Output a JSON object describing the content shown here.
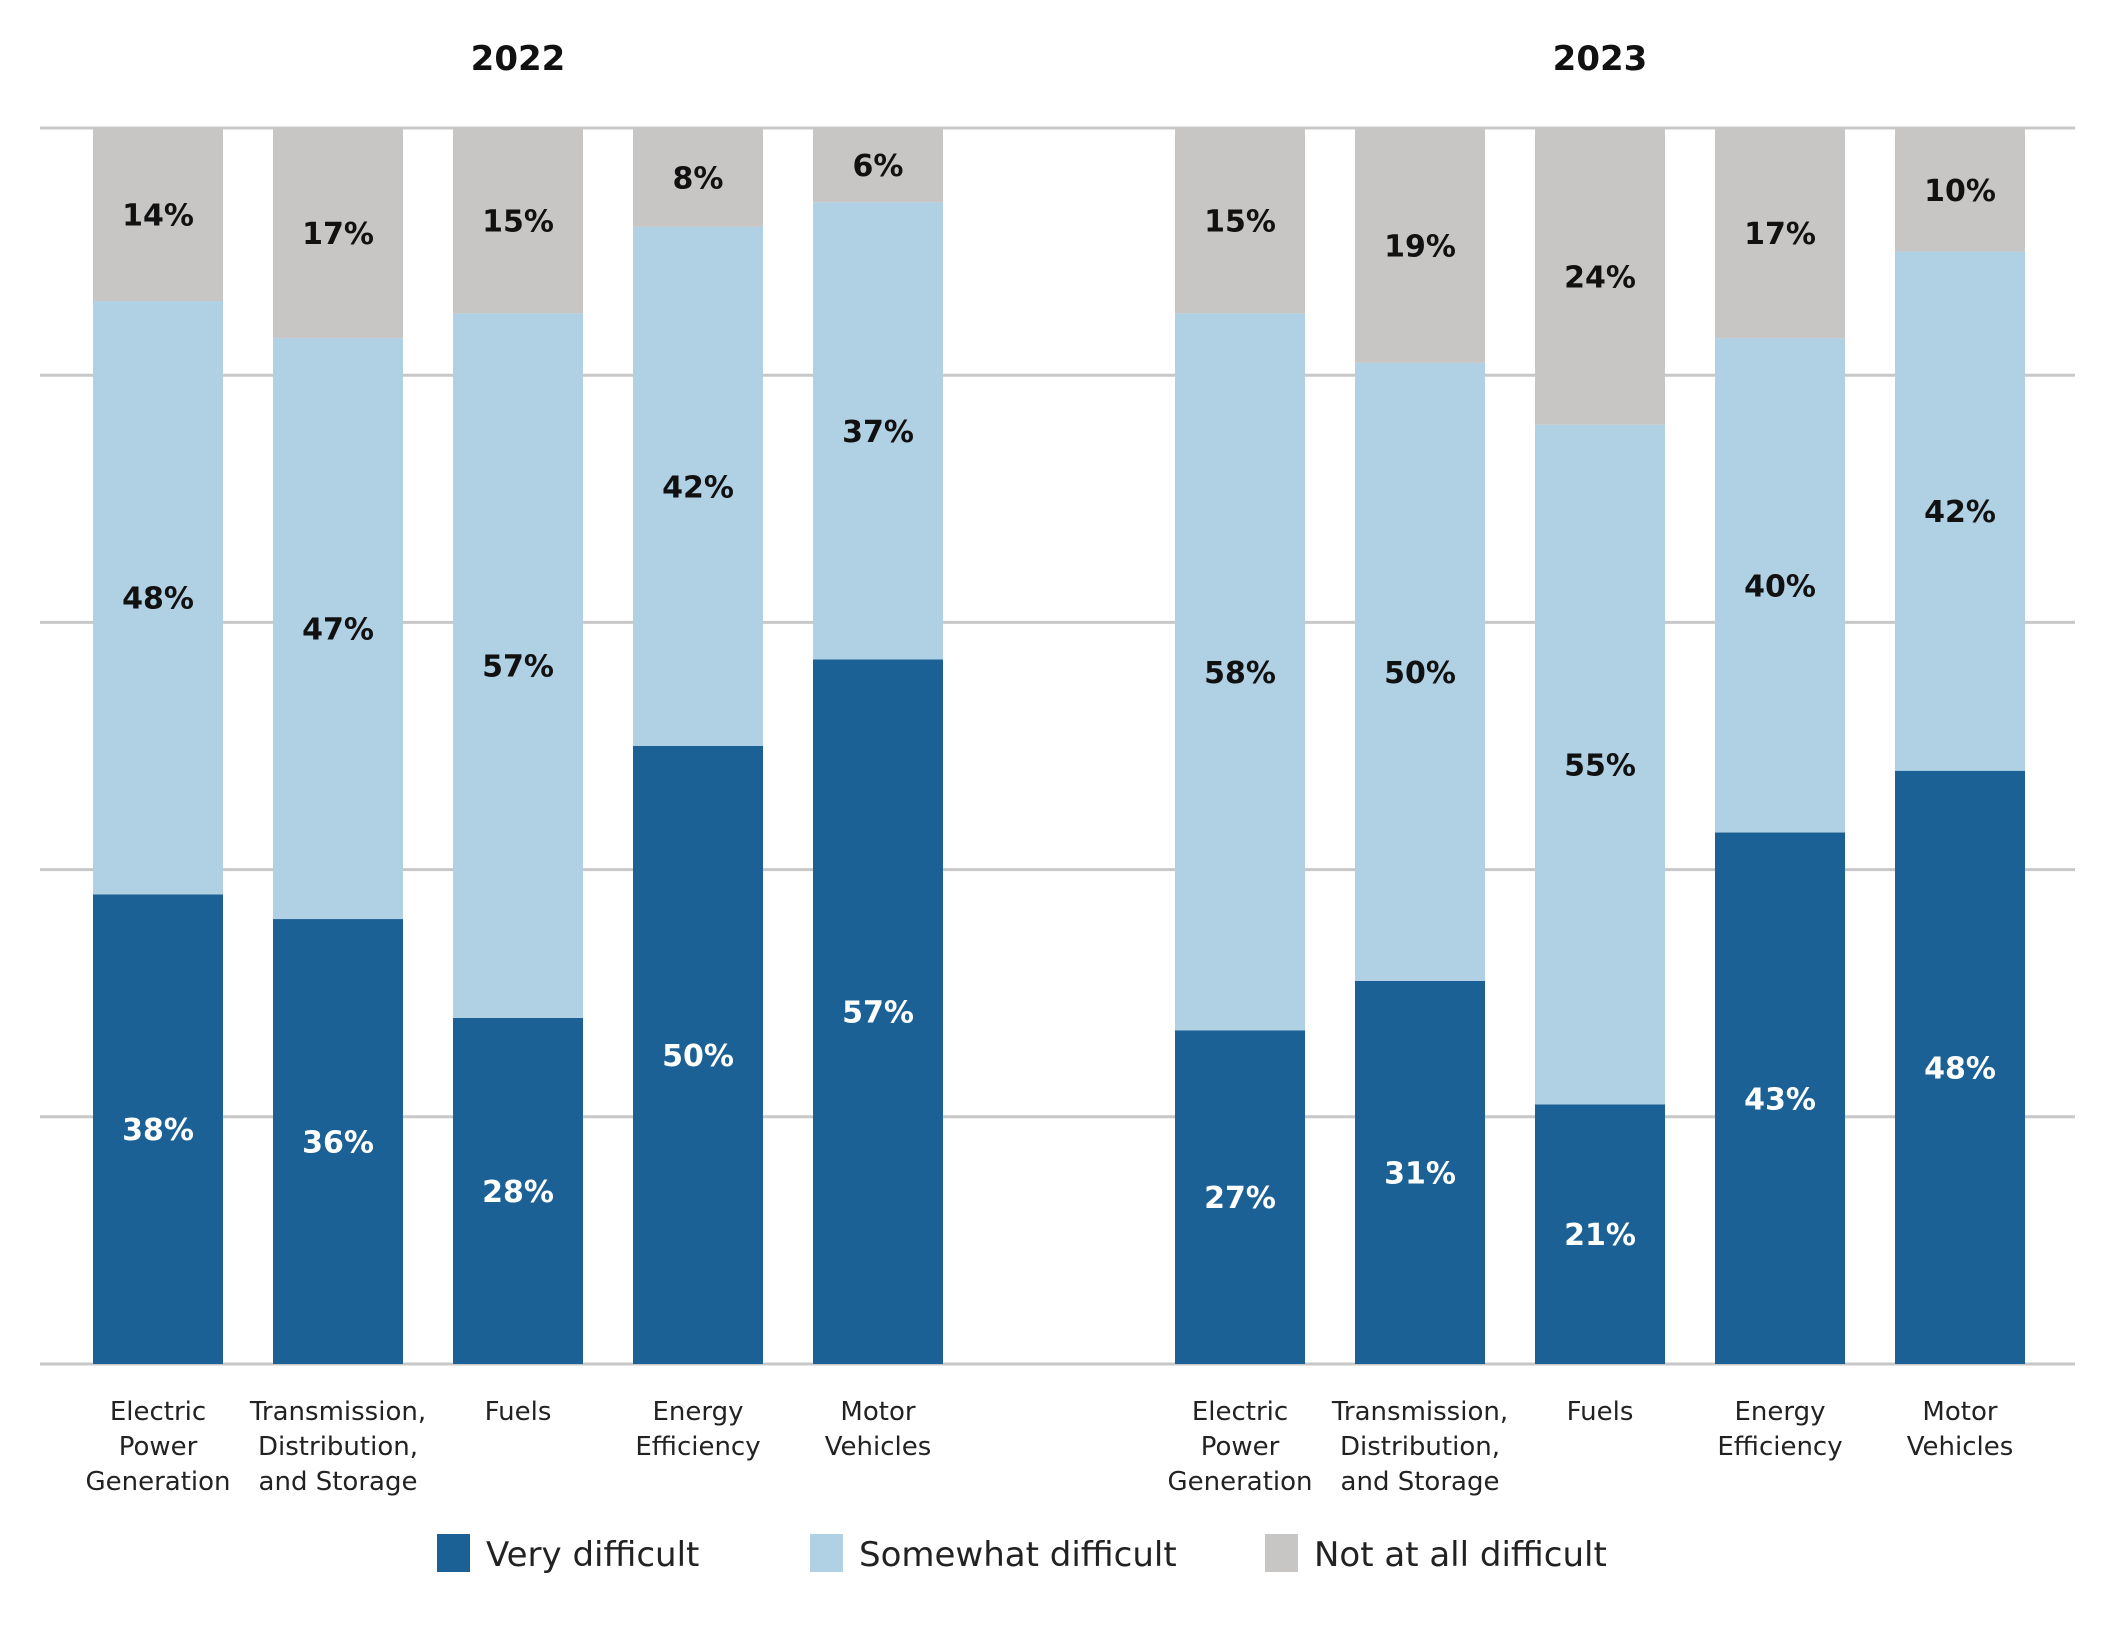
{
  "chart_data": {
    "type": "bar",
    "stacked": true,
    "normalized": true,
    "colors": {
      "very": "#1c6195",
      "somewhat": "#b0d0e3",
      "notatall": "#c8c6c5",
      "grid": "#c8c8c8"
    },
    "legend": [
      {
        "key": "very",
        "label": "Very difficult"
      },
      {
        "key": "somewhat",
        "label": "Somewhat difficult"
      },
      {
        "key": "notatall",
        "label": "Not at all difficult"
      }
    ],
    "groups": [
      {
        "title": "2022",
        "bars": [
          {
            "label_lines": [
              "Electric",
              "Power",
              "Generation"
            ],
            "very": 38,
            "somewhat": 48,
            "notatall": 14
          },
          {
            "label_lines": [
              "Transmission,",
              "Distribution,",
              "and Storage"
            ],
            "very": 36,
            "somewhat": 47,
            "notatall": 17
          },
          {
            "label_lines": [
              "Fuels"
            ],
            "very": 28,
            "somewhat": 57,
            "notatall": 15
          },
          {
            "label_lines": [
              "Energy",
              "Efficiency"
            ],
            "very": 50,
            "somewhat": 42,
            "notatall": 8
          },
          {
            "label_lines": [
              "Motor",
              "Vehicles"
            ],
            "very": 57,
            "somewhat": 37,
            "notatall": 6
          }
        ]
      },
      {
        "title": "2023",
        "bars": [
          {
            "label_lines": [
              "Electric",
              "Power",
              "Generation"
            ],
            "very": 27,
            "somewhat": 58,
            "notatall": 15
          },
          {
            "label_lines": [
              "Transmission,",
              "Distribution,",
              "and Storage"
            ],
            "very": 31,
            "somewhat": 50,
            "notatall": 19
          },
          {
            "label_lines": [
              "Fuels"
            ],
            "very": 21,
            "somewhat": 55,
            "notatall": 24
          },
          {
            "label_lines": [
              "Energy",
              "Efficiency"
            ],
            "very": 43,
            "somewhat": 40,
            "notatall": 17
          },
          {
            "label_lines": [
              "Motor",
              "Vehicles"
            ],
            "very": 48,
            "somewhat": 42,
            "notatall": 10
          }
        ]
      }
    ],
    "ylim": [
      0,
      100
    ],
    "grid": true,
    "legend_position": "bottom-center"
  }
}
